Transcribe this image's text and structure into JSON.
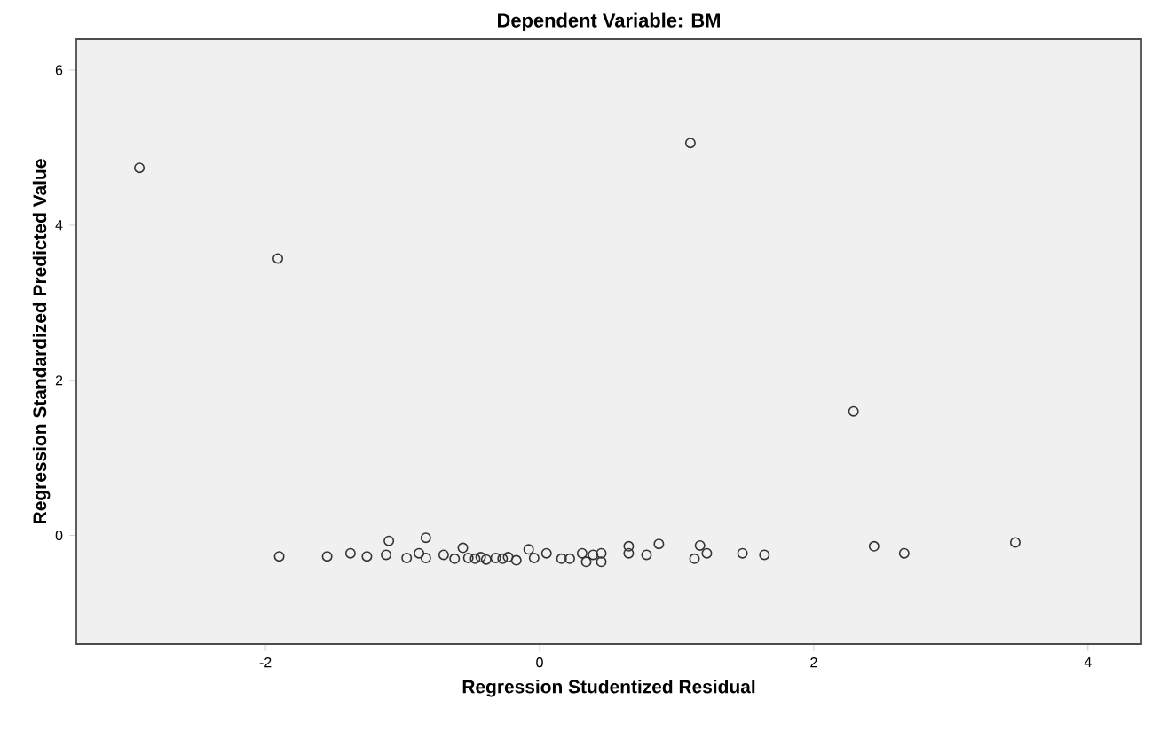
{
  "chart_data": {
    "type": "scatter",
    "title": "Dependent Variable: BM",
    "xlabel": "Regression Studentized Residual",
    "ylabel": "Regression Standardized Predicted Value",
    "x": [
      -2.92,
      -1.91,
      1.1,
      2.29,
      -1.9,
      -1.55,
      -1.38,
      -1.26,
      -1.1,
      -1.12,
      -0.97,
      -0.83,
      -0.88,
      -0.83,
      -0.7,
      -0.62,
      -0.56,
      -0.52,
      -0.47,
      -0.43,
      -0.39,
      -0.32,
      -0.27,
      -0.23,
      -0.17,
      -0.08,
      -0.04,
      0.05,
      0.16,
      0.22,
      0.31,
      0.34,
      0.39,
      0.45,
      0.45,
      0.65,
      0.65,
      0.78,
      0.87,
      1.17,
      1.13,
      1.22,
      1.48,
      1.64,
      2.44,
      2.66,
      3.47
    ],
    "values": [
      4.74,
      3.57,
      5.06,
      1.6,
      -0.27,
      -0.27,
      -0.23,
      -0.27,
      -0.07,
      -0.25,
      -0.29,
      -0.03,
      -0.23,
      -0.29,
      -0.25,
      -0.3,
      -0.16,
      -0.29,
      -0.3,
      -0.28,
      -0.31,
      -0.29,
      -0.3,
      -0.28,
      -0.32,
      -0.18,
      -0.29,
      -0.23,
      -0.3,
      -0.3,
      -0.23,
      -0.34,
      -0.25,
      -0.34,
      -0.23,
      -0.23,
      -0.14,
      -0.25,
      -0.11,
      -0.13,
      -0.3,
      -0.23,
      -0.23,
      -0.25,
      -0.14,
      -0.23,
      -0.09
    ],
    "color": "#333333",
    "marker": "circle",
    "xlim": [
      -3.38,
      4.39
    ],
    "ylim": [
      -1.4,
      6.4
    ],
    "xticks": [
      -2,
      0,
      2,
      4
    ],
    "yticks": [
      0,
      2,
      4,
      6
    ]
  }
}
